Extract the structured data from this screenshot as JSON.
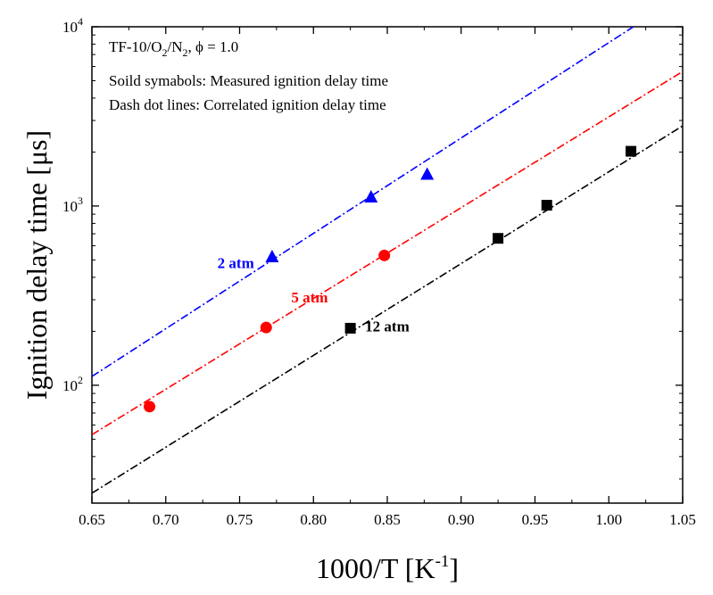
{
  "chart_data": {
    "type": "scatter",
    "title": "",
    "xlabel": "1000/T [K",
    "xlabel_superscript": "-1",
    "xlabel_suffix": "]",
    "ylabel": "Ignition delay time [μs]",
    "xlim": [
      0.65,
      1.05
    ],
    "ylim": [
      22,
      10000
    ],
    "yscale": "log",
    "grid": false,
    "x_ticks": [
      0.65,
      0.7,
      0.75,
      0.8,
      0.85,
      0.9,
      0.95,
      1.0,
      1.05
    ],
    "x_tick_labels": [
      "0.65",
      "0.70",
      "0.75",
      "0.80",
      "0.85",
      "0.90",
      "0.95",
      "1.00",
      "1.05"
    ],
    "y_major_ticks": [
      100,
      1000,
      10000
    ],
    "y_tick_labels": [
      {
        "base": "10",
        "exp": "2"
      },
      {
        "base": "10",
        "exp": "3"
      },
      {
        "base": "10",
        "exp": "4"
      }
    ],
    "annotations": {
      "line1_prefix": "TF-10/O",
      "line1_sub1": "2",
      "line1_mid": "/N",
      "line1_sub2": "2",
      "line1_suffix": ", ϕ = 1.0",
      "line2": "Soild symabols: Measured ignition delay time",
      "line3": "Dash dot lines: Correlated ignition delay time"
    },
    "series": [
      {
        "name": "2 atm",
        "color": "#0000ff",
        "marker": "triangle",
        "x": [
          0.772,
          0.839,
          0.877
        ],
        "y": [
          520,
          1120,
          1500
        ],
        "fit_line": {
          "x": [
            0.65,
            1.05
          ],
          "y": [
            112,
            15050
          ]
        },
        "label_data_pos": {
          "x": 0.735,
          "y": 450
        }
      },
      {
        "name": "5 atm",
        "color": "#ff0000",
        "marker": "circle",
        "x": [
          0.689,
          0.768,
          0.848
        ],
        "y": [
          76,
          210,
          530
        ],
        "fit_line": {
          "x": [
            0.65,
            1.05
          ],
          "y": [
            53,
            5630
          ]
        },
        "label_data_pos": {
          "x": 0.785,
          "y": 290
        }
      },
      {
        "name": "12 atm",
        "color": "#000000",
        "marker": "square",
        "x": [
          0.825,
          0.925,
          0.958,
          1.015
        ],
        "y": [
          208,
          660,
          1010,
          2020
        ],
        "fit_line": {
          "x": [
            0.65,
            1.05
          ],
          "y": [
            25,
            2800
          ]
        },
        "label_data_pos": {
          "x": 0.835,
          "y": 200
        }
      }
    ]
  }
}
